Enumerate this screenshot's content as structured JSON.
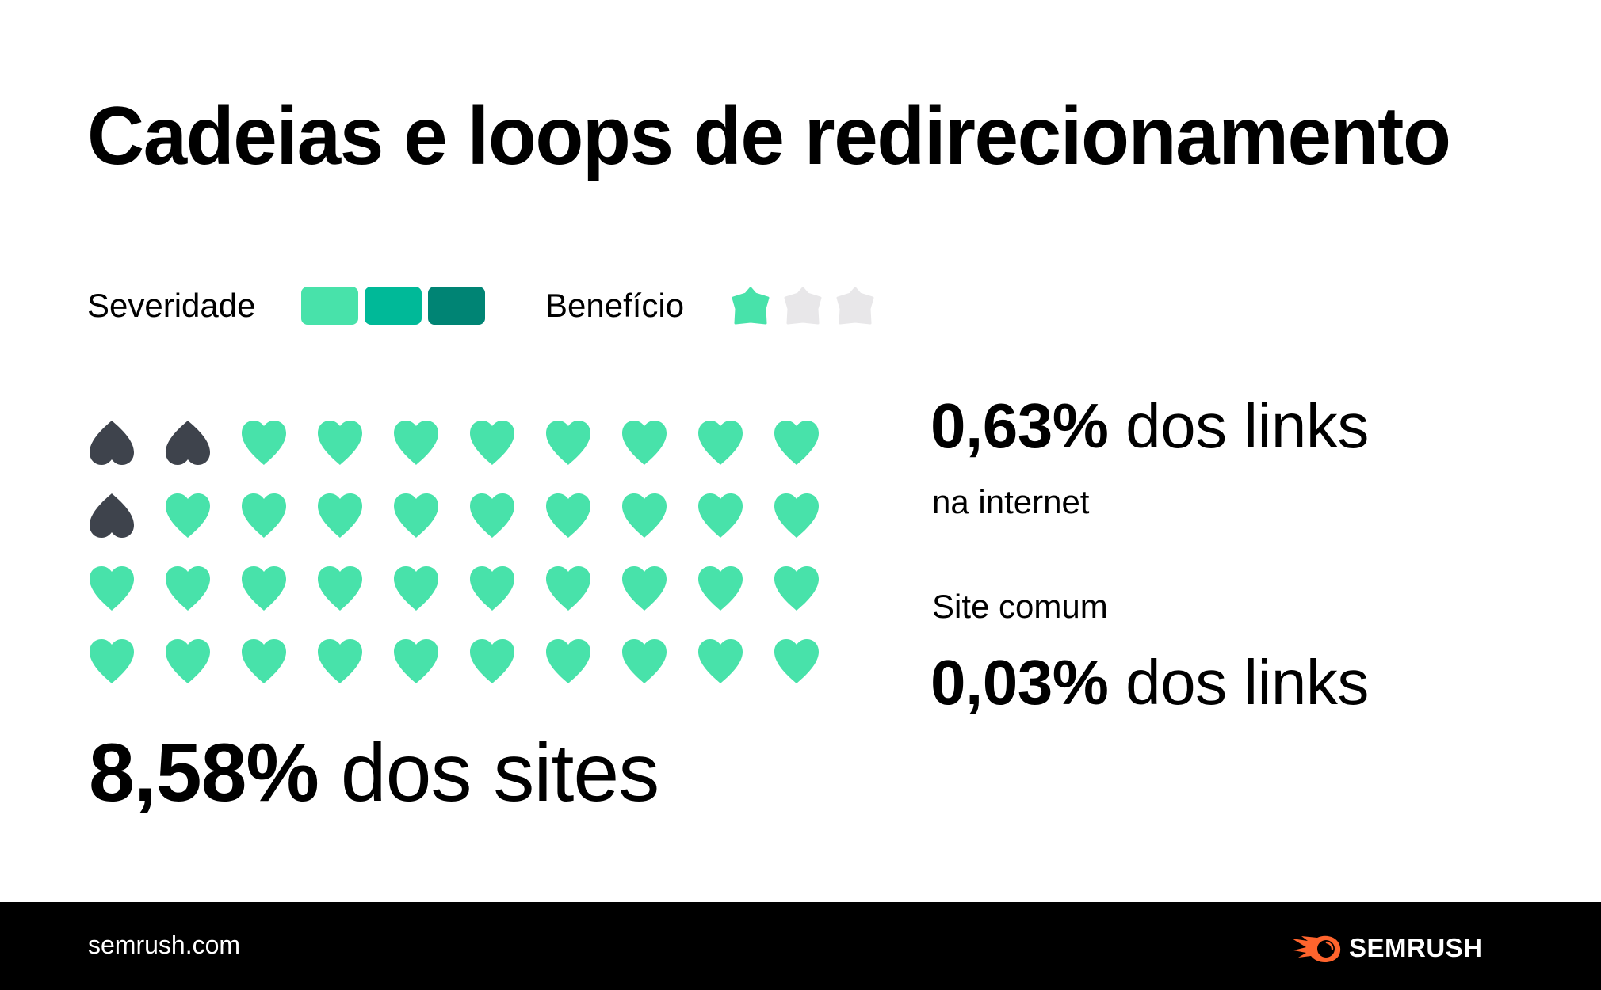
{
  "title": "Cadeias e loops de redirecionamento",
  "legend": {
    "severity_label": "Severidade",
    "severity_swatches": [
      {
        "level": 1,
        "color": "#48E2AA"
      },
      {
        "level": 2,
        "color": "#00B998"
      },
      {
        "level": 3,
        "color": "#008474"
      }
    ],
    "benefit_label": "Benefício",
    "benefit_stars": [
      {
        "filled": true,
        "color": "#48E2AA",
        "icon": "star-icon"
      },
      {
        "filled": false,
        "color": "#E8E7E9",
        "icon": "star-icon"
      },
      {
        "filled": false,
        "color": "#E8E7E9",
        "icon": "star-icon"
      }
    ]
  },
  "heart_grid": {
    "rows": 4,
    "columns": 10,
    "total": 40,
    "broken_count": 3,
    "broken_positions": [
      [
        0,
        0
      ],
      [
        0,
        1
      ],
      [
        1,
        0
      ]
    ],
    "healthy_color": "#48E2AA",
    "broken_color": "#3E434C",
    "icon": "heart-icon"
  },
  "stats": {
    "sites": {
      "value": "8,58%",
      "label": "dos sites"
    },
    "internet_links": {
      "value": "0,63%",
      "label": "dos links",
      "note": "na internet"
    },
    "average_site": {
      "heading": "Site comum",
      "value": "0,03%",
      "label": "dos links"
    }
  },
  "footer": {
    "url": "semrush.com",
    "brand": "SEMRUSH",
    "logo_color": "#FF642D",
    "background": "#000000"
  }
}
